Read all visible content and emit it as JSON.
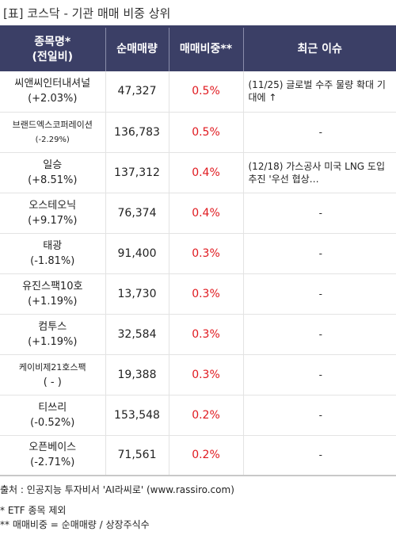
{
  "title": "[표] 코스닥 - 기관 매매 비중 상위",
  "header": {
    "col_name": "종목명*\n(전일비)",
    "col_volume": "순매매량",
    "col_ratio": "매매비중**",
    "col_issue": "최근 이슈"
  },
  "rows": [
    {
      "name": "씨앤씨인터내셔널",
      "change": "(+2.03%)",
      "volume": "47,327",
      "ratio": "0.5%",
      "issue": "(11/25) 글로벌 수주 물량 확대 기대에 ↑"
    },
    {
      "name": "브랜드엑스코퍼레이션",
      "change": "(-2.29%)",
      "volume": "136,783",
      "ratio": "0.5%",
      "issue": "-"
    },
    {
      "name": "일승",
      "change": "(+8.51%)",
      "volume": "137,312",
      "ratio": "0.4%",
      "issue": "(12/18) 가스공사 미국 LNG 도입 추진 '우선 협상…"
    },
    {
      "name": "오스테오닉",
      "change": "(+9.17%)",
      "volume": "76,374",
      "ratio": "0.4%",
      "issue": "-"
    },
    {
      "name": "태광",
      "change": "(-1.81%)",
      "volume": "91,400",
      "ratio": "0.3%",
      "issue": "-"
    },
    {
      "name": "유진스팩10호",
      "change": "(+1.19%)",
      "volume": "13,730",
      "ratio": "0.3%",
      "issue": "-"
    },
    {
      "name": "컴투스",
      "change": "(+1.19%)",
      "volume": "32,584",
      "ratio": "0.3%",
      "issue": "-"
    },
    {
      "name": "케이비제21호스팩",
      "change": "( - )",
      "volume": "19,388",
      "ratio": "0.3%",
      "issue": "-"
    },
    {
      "name": "티쓰리",
      "change": "(-0.52%)",
      "volume": "153,548",
      "ratio": "0.2%",
      "issue": "-"
    },
    {
      "name": "오픈베이스",
      "change": "(-2.71%)",
      "volume": "71,561",
      "ratio": "0.2%",
      "issue": "-"
    }
  ],
  "footer": {
    "source": "출처 : 인공지능 투자비서 'AI라씨로' (www.rassiro.com)",
    "note1": "* ETF 종목 제외",
    "note2": "** 매매비중 = 순매매량 / 상장주식수"
  },
  "colors": {
    "header_bg": "#3b3f66",
    "ratio_text": "#e0191f"
  }
}
